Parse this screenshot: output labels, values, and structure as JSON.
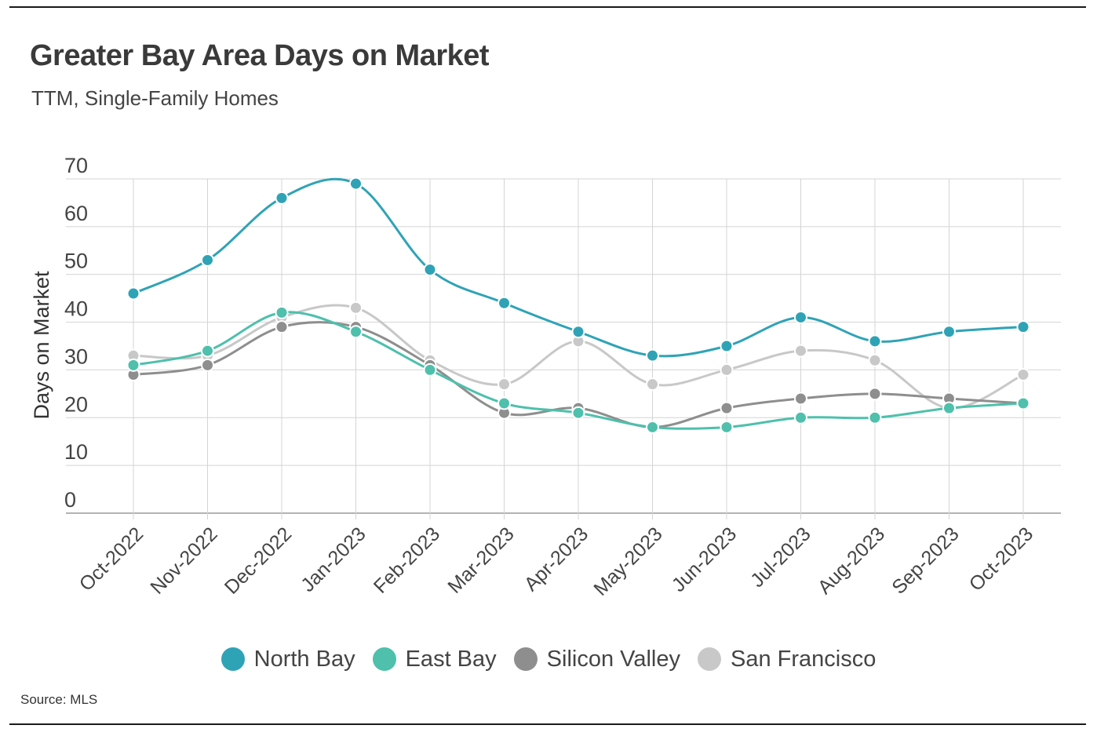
{
  "header": {
    "title": "Greater Bay Area Days on Market",
    "subtitle": "TTM, Single-Family Homes"
  },
  "footer": {
    "source": "Source: MLS"
  },
  "chart_data": {
    "type": "line",
    "title": "Greater Bay Area Days on Market",
    "subtitle": "TTM, Single-Family Homes",
    "xlabel": "",
    "ylabel": "Days on Market",
    "ylim": [
      0,
      70
    ],
    "yticks": [
      0,
      10,
      20,
      30,
      40,
      50,
      60,
      70
    ],
    "grid": true,
    "legend_position": "bottom",
    "categories": [
      "Oct-2022",
      "Nov-2022",
      "Dec-2022",
      "Jan-2023",
      "Feb-2023",
      "Mar-2023",
      "Apr-2023",
      "May-2023",
      "Jun-2023",
      "Jul-2023",
      "Aug-2023",
      "Sep-2023",
      "Oct-2023"
    ],
    "series": [
      {
        "name": "San Francisco",
        "color": "#c8c8c8",
        "values": [
          33,
          33,
          41,
          43,
          32,
          27,
          36,
          27,
          30,
          34,
          32,
          22,
          29
        ]
      },
      {
        "name": "Silicon Valley",
        "color": "#8e8e8e",
        "values": [
          29,
          31,
          39,
          39,
          31,
          21,
          22,
          18,
          22,
          24,
          25,
          24,
          23
        ]
      },
      {
        "name": "East Bay",
        "color": "#4ec0ac",
        "values": [
          31,
          34,
          42,
          38,
          30,
          23,
          21,
          18,
          18,
          20,
          20,
          22,
          23
        ]
      },
      {
        "name": "North Bay",
        "color": "#2fa3b6",
        "values": [
          46,
          53,
          66,
          69,
          51,
          44,
          38,
          33,
          35,
          41,
          36,
          38,
          39
        ]
      }
    ],
    "legend": [
      {
        "name": "North Bay",
        "color": "#2fa3b6"
      },
      {
        "name": "East Bay",
        "color": "#4ec0ac"
      },
      {
        "name": "Silicon Valley",
        "color": "#8e8e8e"
      },
      {
        "name": "San Francisco",
        "color": "#c8c8c8"
      }
    ]
  }
}
